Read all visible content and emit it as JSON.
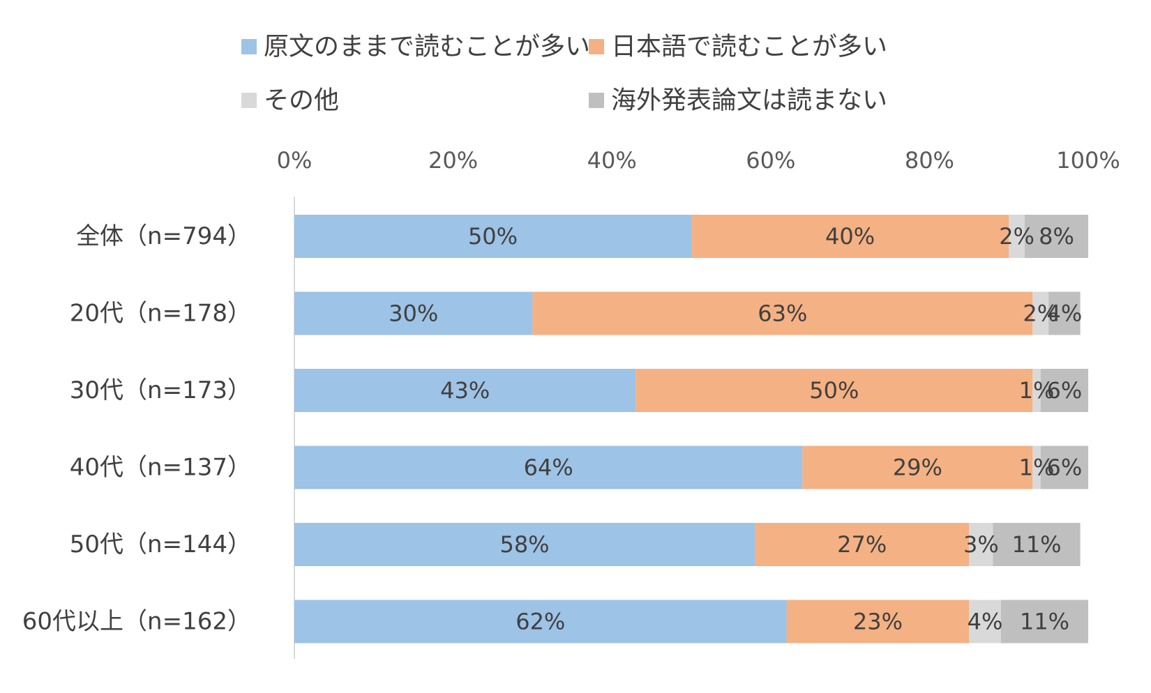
{
  "chart_data": {
    "type": "bar",
    "orientation": "horizontal",
    "stacked": true,
    "percent_stacked": true,
    "categories": [
      "全体（n=794）",
      "20代（n=178）",
      "30代（n=173）",
      "40代（n=137）",
      "50代（n=144）",
      "60代以上（n=162）"
    ],
    "series": [
      {
        "name": "原文のままで読むことが多い",
        "color": "#9dc3e6",
        "values": [
          50,
          30,
          43,
          64,
          58,
          62
        ],
        "labels": [
          "50%",
          "30%",
          "43%",
          "64%",
          "58%",
          "62%"
        ]
      },
      {
        "name": "日本語で読むことが多い",
        "color": "#f4b183",
        "values": [
          40,
          63,
          50,
          29,
          27,
          23
        ],
        "labels": [
          "40%",
          "63%",
          "50%",
          "29%",
          "27%",
          "23%"
        ]
      },
      {
        "name": "その他",
        "color": "#d9d9d9",
        "values": [
          2,
          2,
          1,
          1,
          3,
          4
        ],
        "labels": [
          "2%",
          "2%",
          "1%",
          "1%",
          "3%",
          "4%"
        ]
      },
      {
        "name": "海外発表論文は読まない",
        "color": "#bfbfbf",
        "values": [
          8,
          4,
          6,
          6,
          11,
          11
        ],
        "labels": [
          "8%",
          "4%",
          "6%",
          "6%",
          "11%",
          "11%"
        ]
      }
    ],
    "xaxis": {
      "ticks": [
        "0%",
        "20%",
        "40%",
        "60%",
        "80%",
        "100%"
      ],
      "range": [
        0,
        100
      ],
      "position": "top"
    },
    "grid": false,
    "legend_position": "top"
  }
}
